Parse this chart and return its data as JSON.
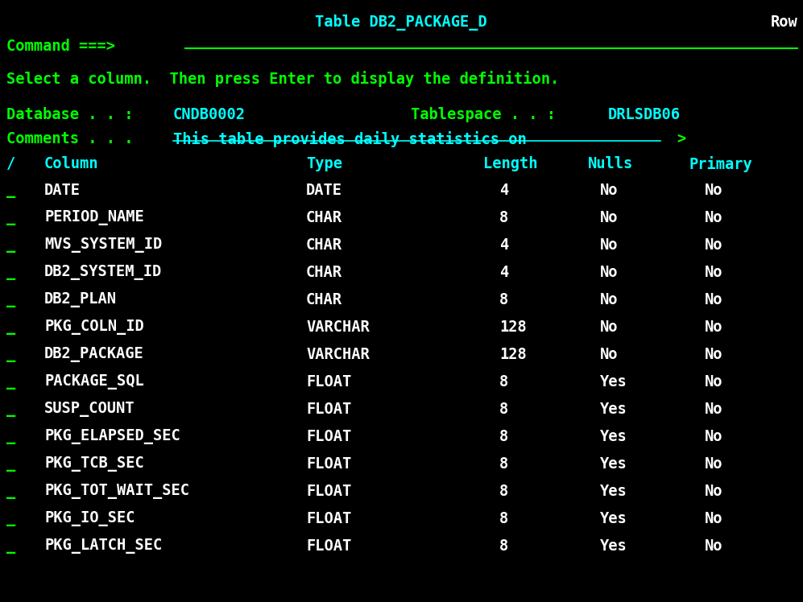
{
  "bg_color": "#000000",
  "title_text": "Table DB2_PACKAGE_D",
  "title_color": "#00FFFF",
  "row_text": "Row",
  "row_color": "#FFFFFF",
  "command_label": "Command ===>",
  "command_label_color": "#00FF00",
  "underline_color": "#00FF00",
  "select_text": "Select a column.  Then press Enter to display the definition.",
  "select_color": "#00FF00",
  "db_label": "Database . . :",
  "db_label_color": "#00FF00",
  "db_value": "CNDB0002",
  "db_value_color": "#00FFFF",
  "ts_label": "Tablespace . . :",
  "ts_label_color": "#00FF00",
  "ts_value": "DRLSDB06",
  "ts_value_color": "#00FFFF",
  "comments_label": "Comments . . .",
  "comments_label_color": "#00FF00",
  "comments_value": "This table provides daily statistics on",
  "comments_value_color": "#00FFFF",
  "comments_arrow": ">",
  "comments_arrow_color": "#00FF00",
  "header_slash": "/",
  "header_column": "Column",
  "header_type": "Type",
  "header_length": "Length",
  "header_nulls": "Nulls",
  "header_primary": "Primary",
  "header_color": "#00FFFF",
  "rows": [
    {
      "sel": "_",
      "column": "DATE",
      "type": "DATE",
      "length": "4",
      "nulls": "No",
      "primary": "No"
    },
    {
      "sel": "_",
      "column": "PERIOD_NAME",
      "type": "CHAR",
      "length": "8",
      "nulls": "No",
      "primary": "No"
    },
    {
      "sel": "_",
      "column": "MVS_SYSTEM_ID",
      "type": "CHAR",
      "length": "4",
      "nulls": "No",
      "primary": "No"
    },
    {
      "sel": "_",
      "column": "DB2_SYSTEM_ID",
      "type": "CHAR",
      "length": "4",
      "nulls": "No",
      "primary": "No"
    },
    {
      "sel": "_",
      "column": "DB2_PLAN",
      "type": "CHAR",
      "length": "8",
      "nulls": "No",
      "primary": "No"
    },
    {
      "sel": "_",
      "column": "PKG_COLN_ID",
      "type": "VARCHAR",
      "length": "128",
      "nulls": "No",
      "primary": "No"
    },
    {
      "sel": "_",
      "column": "DB2_PACKAGE",
      "type": "VARCHAR",
      "length": "128",
      "nulls": "No",
      "primary": "No"
    },
    {
      "sel": "_",
      "column": "PACKAGE_SQL",
      "type": "FLOAT",
      "length": "8",
      "nulls": "Yes",
      "primary": "No"
    },
    {
      "sel": "_",
      "column": "SUSP_COUNT",
      "type": "FLOAT",
      "length": "8",
      "nulls": "Yes",
      "primary": "No"
    },
    {
      "sel": "_",
      "column": "PKG_ELAPSED_SEC",
      "type": "FLOAT",
      "length": "8",
      "nulls": "Yes",
      "primary": "No"
    },
    {
      "sel": "_",
      "column": "PKG_TCB_SEC",
      "type": "FLOAT",
      "length": "8",
      "nulls": "Yes",
      "primary": "No"
    },
    {
      "sel": "_",
      "column": "PKG_TOT_WAIT_SEC",
      "type": "FLOAT",
      "length": "8",
      "nulls": "Yes",
      "primary": "No"
    },
    {
      "sel": "_",
      "column": "PKG_IO_SEC",
      "type": "FLOAT",
      "length": "8",
      "nulls": "Yes",
      "primary": "No"
    },
    {
      "sel": "_",
      "column": "PKG_LATCH_SEC",
      "type": "FLOAT",
      "length": "8",
      "nulls": "Yes",
      "primary": "No"
    }
  ],
  "sel_color": "#00FF00",
  "column_color": "#FFFFFF",
  "type_color": "#FFFFFF",
  "length_color": "#FFFFFF",
  "nulls_color": "#FFFFFF",
  "primary_color": "#FFFFFF",
  "font_size": 13.5,
  "font_family": "monospace"
}
